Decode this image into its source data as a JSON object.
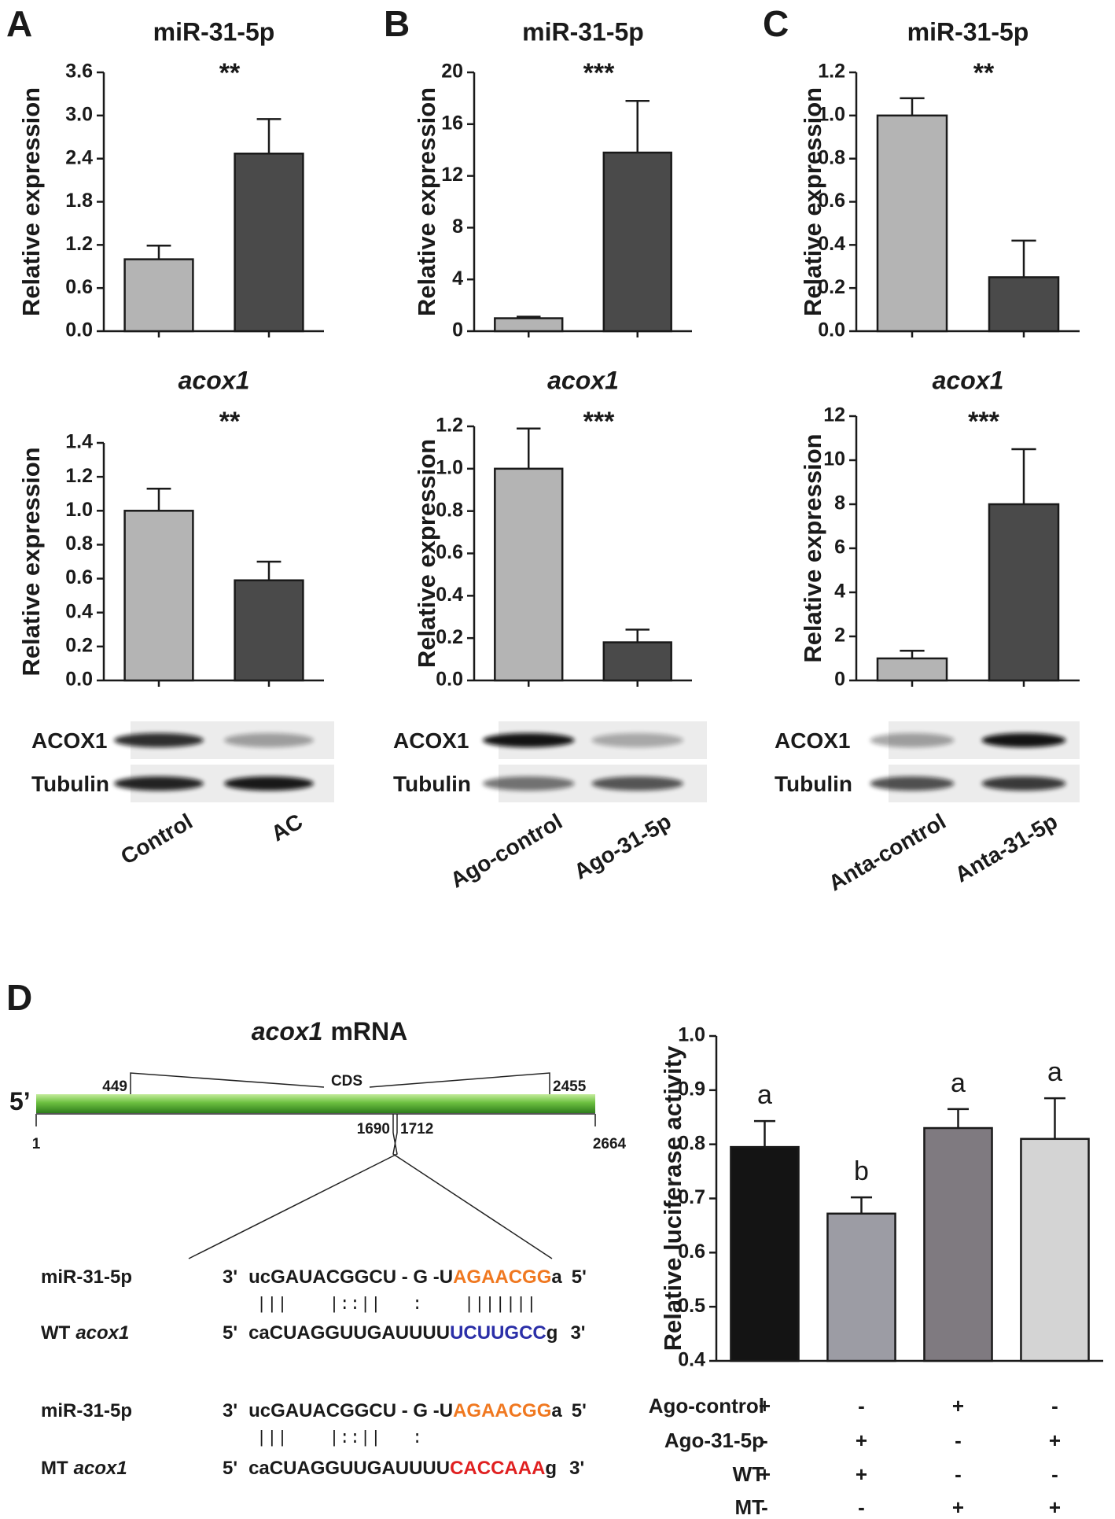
{
  "panel_labels": [
    "A",
    "B",
    "C",
    "D"
  ],
  "chart_data": [
    {
      "type": "bar",
      "title": "miR-31-5p",
      "y_label": "Relative expression",
      "annotation": "**",
      "categories": [
        null,
        null
      ],
      "values": [
        1,
        2.47
      ],
      "errors": [
        0.19,
        0.48
      ],
      "colors": [
        "#b4b4b4",
        "#4a4a4a"
      ],
      "ylim": [
        0,
        3.6
      ],
      "yticks": [
        {
          "value": 0,
          "label": "0.0"
        },
        0.6,
        1.2,
        1.8,
        2.4,
        {
          "value": 3,
          "label": "3.0"
        },
        3.6
      ]
    },
    {
      "type": "bar",
      "title": "acox1",
      "title_italic": true,
      "y_label": "Relative expression",
      "annotation": "**",
      "categories": [
        "Control",
        "AC"
      ],
      "values": [
        1,
        0.59
      ],
      "errors": [
        0.13,
        0.11
      ],
      "colors": [
        "#b4b4b4",
        "#4a4a4a"
      ],
      "ylim": [
        0,
        1.4
      ],
      "yticks": [
        {
          "value": 0,
          "label": "0.0"
        },
        0.2,
        0.4,
        0.6,
        0.8,
        {
          "value": 1,
          "label": "1.0"
        },
        1.2,
        1.4
      ]
    },
    {
      "type": "bar",
      "title": "miR-31-5p",
      "y_label": "Relative expression",
      "annotation": "***",
      "categories": [
        null,
        null
      ],
      "values": [
        1,
        13.8
      ],
      "errors": [
        0.12,
        4.0
      ],
      "colors": [
        "#b4b4b4",
        "#4a4a4a"
      ],
      "ylim": [
        0,
        20
      ],
      "yticks": [
        0,
        4,
        8,
        12,
        16,
        20
      ]
    },
    {
      "type": "bar",
      "title": "acox1",
      "title_italic": true,
      "y_label": "Relative expression",
      "annotation": "***",
      "categories": [
        "Ago-control",
        "Ago-31-5p"
      ],
      "values": [
        1,
        0.18
      ],
      "errors": [
        0.19,
        0.06
      ],
      "colors": [
        "#b4b4b4",
        "#4a4a4a"
      ],
      "ylim": [
        0,
        1.2
      ],
      "yticks": [
        {
          "value": 0,
          "label": "0.0"
        },
        0.2,
        0.4,
        0.6,
        0.8,
        {
          "value": 1,
          "label": "1.0"
        },
        1.2
      ]
    },
    {
      "type": "bar",
      "title": "miR-31-5p",
      "y_label": "Relative expression",
      "annotation": "**",
      "categories": [
        null,
        null
      ],
      "values": [
        1,
        0.25
      ],
      "errors": [
        0.08,
        0.17
      ],
      "colors": [
        "#b4b4b4",
        "#4a4a4a"
      ],
      "ylim": [
        0,
        1.2
      ],
      "yticks": [
        {
          "value": 0,
          "label": "0.0"
        },
        0.2,
        0.4,
        0.6,
        0.8,
        {
          "value": 1,
          "label": "1.0"
        },
        1.2
      ]
    },
    {
      "type": "bar",
      "title": "acox1",
      "title_italic": true,
      "y_label": "Relative expression",
      "annotation": "***",
      "categories": [
        "Anta-control",
        "Anta-31-5p"
      ],
      "values": [
        1,
        8
      ],
      "errors": [
        0.35,
        2.5
      ],
      "colors": [
        "#b4b4b4",
        "#4a4a4a"
      ],
      "ylim": [
        0,
        12
      ],
      "yticks": [
        0,
        2,
        4,
        6,
        8,
        10,
        12
      ]
    },
    {
      "type": "bar",
      "y_label": "Relative luciferase activity",
      "values": [
        0.795,
        0.672,
        0.83,
        0.81
      ],
      "errors": [
        0.048,
        0.03,
        0.035,
        0.075
      ],
      "annotations": [
        "a",
        "b",
        "a",
        "a"
      ],
      "colors": [
        "#141414",
        "#9c9ca4",
        "#7f7a80",
        "#d4d4d4"
      ],
      "ylim": [
        0.4,
        1.0
      ],
      "yticks": [
        0.4,
        0.5,
        0.6,
        0.7,
        0.8,
        0.9,
        {
          "value": 1,
          "label": "1.0"
        }
      ],
      "conditions": [
        {
          "name": "Ago-control",
          "signs": [
            "+",
            "-",
            "+",
            "-"
          ]
        },
        {
          "name": "Ago-31-5p",
          "signs": [
            "-",
            "+",
            "-",
            "+"
          ]
        },
        {
          "name": "WT",
          "signs": [
            "+",
            "+",
            "-",
            "-"
          ]
        },
        {
          "name": "MT",
          "signs": [
            "-",
            "-",
            "+",
            "+"
          ]
        }
      ]
    }
  ],
  "blots": [
    {
      "rows": [
        "ACOX1",
        "Tubulin"
      ]
    },
    {
      "rows": [
        "ACOX1",
        "Tubulin"
      ]
    },
    {
      "rows": [
        "ACOX1",
        "Tubulin"
      ]
    }
  ],
  "diagram": {
    "title": {
      "gene": "acox1",
      "rest": "mRNA"
    },
    "five_prime": "5’",
    "cds": "CDS",
    "cds_start": "449",
    "cds_end": "2455",
    "start": "1",
    "end": "2664",
    "site_start": "1690",
    "site_end": "1712",
    "alignments": [
      {
        "mirna_name": "miR-31-5p",
        "mirna_ends": [
          "3'",
          "5'"
        ],
        "mirna_seq": [
          "ucGAUACGGCU - G -U",
          "AGAACGG",
          "a"
        ],
        "pairing": "|||    |::||   :    |||||||",
        "target_name": "WT",
        "target_gene": "acox1",
        "target_ends": [
          "5'",
          "3'"
        ],
        "target_seq": [
          "caCUAGGUUGAUUUU",
          "UCUUGCC",
          "g"
        ]
      },
      {
        "mirna_name": "miR-31-5p",
        "mirna_ends": [
          "3'",
          "5'"
        ],
        "mirna_seq": [
          "ucGAUACGGCU - G -U",
          "AGAACGG",
          "a"
        ],
        "pairing": "|||    |::||   :",
        "target_name": "MT",
        "target_gene": "acox1",
        "target_ends": [
          "5'",
          "3'"
        ],
        "target_seq": [
          "caCUAGGUUGAUUUU",
          "CACCAAA",
          "g"
        ]
      }
    ]
  }
}
